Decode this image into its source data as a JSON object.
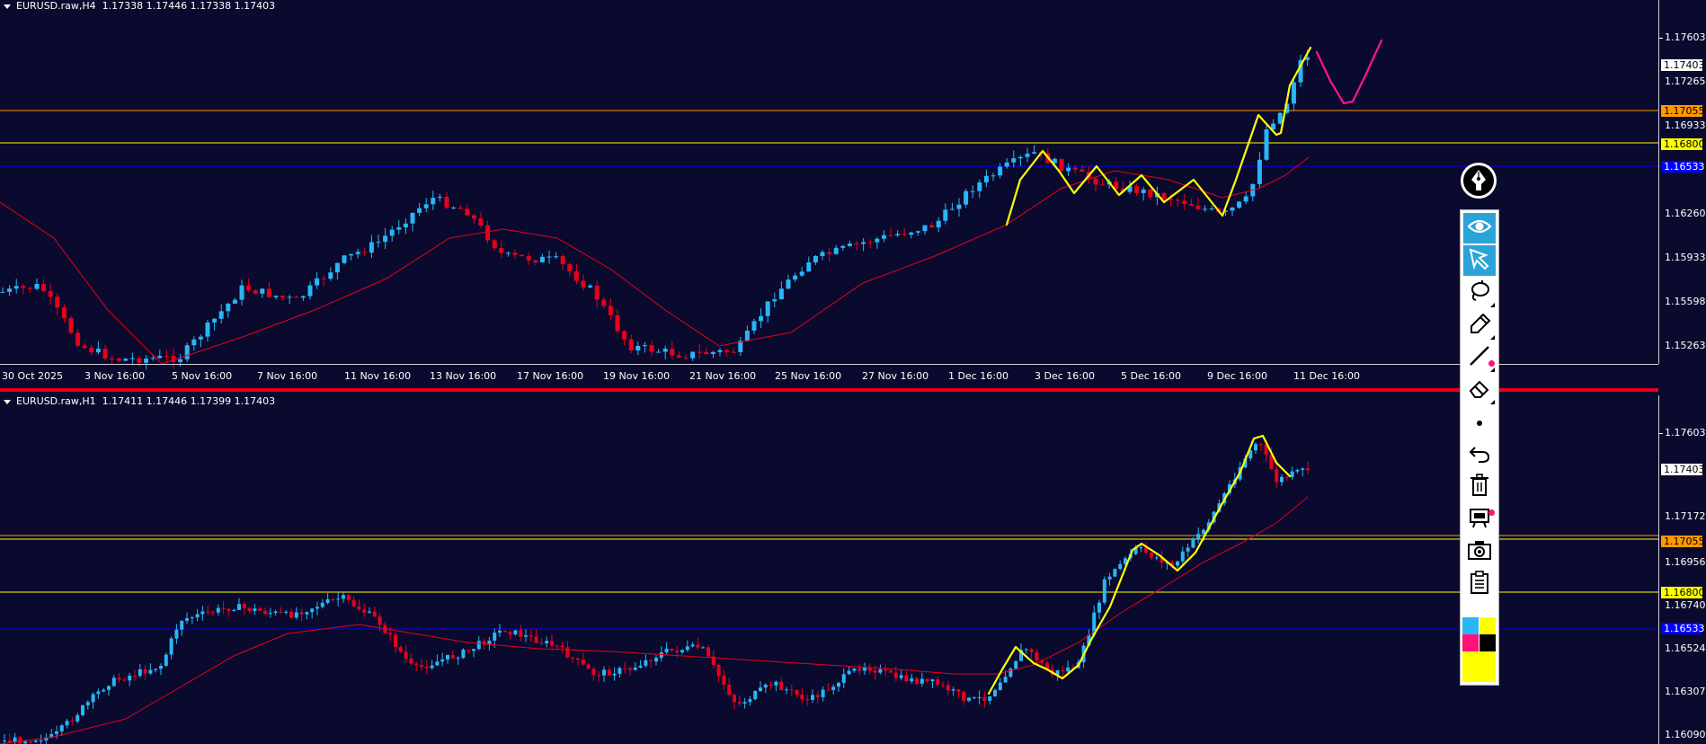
{
  "top_pane": {
    "title": "EURUSD.raw,H4",
    "ohlc": "1.17338 1.17446 1.17338 1.17403",
    "y_ticks": [
      "1.17603",
      "1.17265",
      "1.16933",
      "1.16260",
      "1.15933",
      "1.15598",
      "1.15263"
    ],
    "price_tags": [
      {
        "text": "1.17403",
        "bg": "#ffffff",
        "fg": "#000000"
      },
      {
        "text": "1.17055",
        "bg": "#ff9900",
        "fg": "#000000"
      },
      {
        "text": "1.16800",
        "bg": "#ffff00",
        "fg": "#000000"
      },
      {
        "text": "1.16533",
        "bg": "#0000ff",
        "fg": "#ffffff"
      }
    ],
    "x_labels": [
      "30 Oct 2025",
      "3 Nov 16:00",
      "5 Nov 16:00",
      "7 Nov 16:00",
      "11 Nov 16:00",
      "13 Nov 16:00",
      "17 Nov 16:00",
      "19 Nov 16:00",
      "21 Nov 16:00",
      "25 Nov 16:00",
      "27 Nov 16:00",
      "1 Dec 16:00",
      "3 Dec 16:00",
      "5 Dec 16:00",
      "9 Dec 16:00",
      "11 Dec 16:00"
    ]
  },
  "bottom_pane": {
    "title": "EURUSD.raw,H1",
    "ohlc": "1.17411 1.17446 1.17399 1.17403",
    "y_ticks": [
      "1.17603",
      "1.17172",
      "1.16956",
      "1.16740",
      "1.16524",
      "1.16307",
      "1.16090"
    ],
    "price_tags": [
      {
        "text": "1.17403",
        "bg": "#ffffff",
        "fg": "#000000"
      },
      {
        "text": "1.17055",
        "bg": "#ff9900",
        "fg": "#000000"
      },
      {
        "text": "1.16800",
        "bg": "#ffff00",
        "fg": "#000000"
      },
      {
        "text": "1.16533",
        "bg": "#0000ff",
        "fg": "#ffffff"
      }
    ]
  },
  "colors": {
    "background": "#0a0a2e",
    "bull_candle": "#29b6f6",
    "bear_candle": "#e8001c",
    "moving_average": "#e8001c",
    "level_orange": "#ff9900",
    "level_yellow": "#ffff00",
    "level_blue": "#0000ff",
    "drawing_yellow": "#ffff00",
    "drawing_magenta": "#ff1493",
    "toolbar_active": "#2aa4d8"
  },
  "toolbar": {
    "tools": [
      {
        "icon": "eye-icon",
        "active": true
      },
      {
        "icon": "cursor-arrow-icon",
        "active": true
      },
      {
        "icon": "lasso-icon",
        "active": false
      },
      {
        "icon": "highlighter-icon",
        "active": false
      },
      {
        "icon": "line-icon",
        "active": false
      },
      {
        "icon": "eraser-icon",
        "active": false
      },
      {
        "icon": "dot-size-icon",
        "active": false
      },
      {
        "icon": "undo-icon",
        "active": false
      },
      {
        "icon": "trash-icon",
        "active": false
      },
      {
        "icon": "projector-icon",
        "active": false
      },
      {
        "icon": "camera-icon",
        "active": false
      },
      {
        "icon": "clipboard-icon",
        "active": false
      }
    ],
    "palette": [
      "#29b6f6",
      "#ffff00",
      "#ff1177",
      "#000000",
      "#ffff00",
      "#ffff00"
    ]
  }
}
